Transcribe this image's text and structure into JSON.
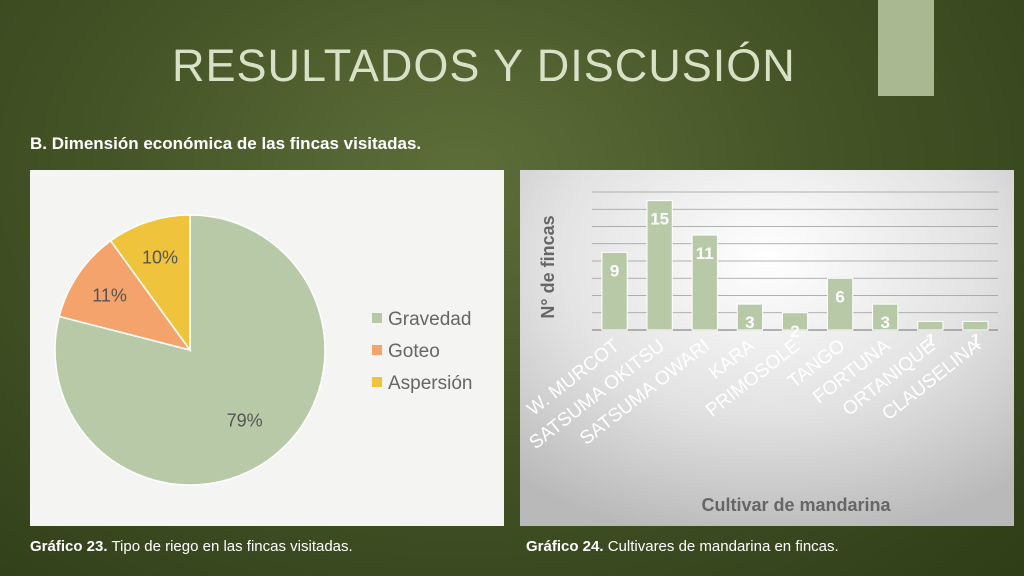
{
  "slide": {
    "title": "RESULTADOS Y DISCUSIÓN",
    "subtitle": "B. Dimensión económica de las fincas visitadas.",
    "caption_left": {
      "label": "Gráfico 23.",
      "text": " Tipo de riego en las fincas visitadas."
    },
    "caption_right": {
      "label": "Gráfico 24.",
      "text": " Cultivares de mandarina en fincas."
    }
  },
  "chart_data": [
    {
      "type": "pie",
      "title": "",
      "slices": [
        {
          "name": "Gravedad",
          "value": 79,
          "label": "79%",
          "color": "#b8c9a8"
        },
        {
          "name": "Goteo",
          "value": 11,
          "label": "11%",
          "color": "#f3a36b"
        },
        {
          "name": "Aspersión",
          "value": 10,
          "label": "10%",
          "color": "#efc43c"
        }
      ],
      "legend": "right"
    },
    {
      "type": "bar",
      "title": "",
      "xlabel": "Cultivar de mandarina",
      "ylabel": "N° de fincas",
      "categories": [
        "W. MURCOT",
        "SATSUMA OKITSU",
        "SATSUMA OWARI",
        "KARA",
        "PRIMOSOLE",
        "TANGO",
        "FORTUNA",
        "ORTANIQUE",
        "CLAUSELINA"
      ],
      "values": [
        9,
        15,
        11,
        3,
        2,
        6,
        3,
        1,
        1
      ],
      "ylim": [
        0,
        16
      ],
      "grid": true,
      "bar_color": "#b8c9a8"
    }
  ]
}
